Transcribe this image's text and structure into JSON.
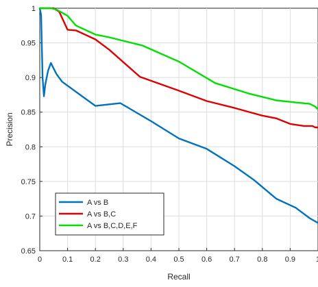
{
  "chart_data": {
    "type": "line",
    "title": "",
    "xlabel": "Recall",
    "ylabel": "Precision",
    "xlim": [
      0,
      1
    ],
    "ylim": [
      0.65,
      1
    ],
    "x_ticks": [
      0,
      0.1,
      0.2,
      0.3,
      0.4,
      0.5,
      0.6,
      0.7,
      0.8,
      0.9,
      1
    ],
    "x_tick_labels": [
      "0",
      "0.1",
      "0.2",
      "0.3",
      "0.4",
      "0.5",
      "0.6",
      "0.7",
      "0.8",
      "0.9",
      "1"
    ],
    "y_ticks": [
      0.65,
      0.7,
      0.75,
      0.8,
      0.85,
      0.9,
      0.95,
      1
    ],
    "y_tick_labels": [
      "0.65",
      "0.7",
      "0.75",
      "0.8",
      "0.85",
      "0.9",
      "0.95",
      "1"
    ],
    "grid": true,
    "legend_position": "bottom-left",
    "series": [
      {
        "name": "A vs B",
        "color": "#0072BD",
        "points": [
          [
            0,
            1.0
          ],
          [
            0.005,
            0.99
          ],
          [
            0.01,
            0.9
          ],
          [
            0.015,
            0.873
          ],
          [
            0.02,
            0.89
          ],
          [
            0.03,
            0.91
          ],
          [
            0.04,
            0.921
          ],
          [
            0.06,
            0.905
          ],
          [
            0.08,
            0.894
          ],
          [
            0.2,
            0.859
          ],
          [
            0.29,
            0.863
          ],
          [
            0.4,
            0.837
          ],
          [
            0.5,
            0.812
          ],
          [
            0.6,
            0.797
          ],
          [
            0.7,
            0.772
          ],
          [
            0.77,
            0.752
          ],
          [
            0.85,
            0.725
          ],
          [
            0.92,
            0.712
          ],
          [
            0.97,
            0.697
          ],
          [
            1.0,
            0.69
          ]
        ]
      },
      {
        "name": "A vs B,C",
        "color": "#E00000",
        "points": [
          [
            0,
            1.0
          ],
          [
            0.05,
            1.0
          ],
          [
            0.07,
            0.995
          ],
          [
            0.1,
            0.969
          ],
          [
            0.13,
            0.968
          ],
          [
            0.2,
            0.955
          ],
          [
            0.25,
            0.94
          ],
          [
            0.36,
            0.901
          ],
          [
            0.5,
            0.881
          ],
          [
            0.6,
            0.866
          ],
          [
            0.7,
            0.856
          ],
          [
            0.8,
            0.845
          ],
          [
            0.85,
            0.841
          ],
          [
            0.9,
            0.833
          ],
          [
            0.95,
            0.83
          ],
          [
            0.98,
            0.83
          ],
          [
            0.99,
            0.828
          ],
          [
            1.0,
            0.828
          ]
        ]
      },
      {
        "name": "A vs B,C,D,E,F",
        "color": "#00E000",
        "points": [
          [
            0,
            1.0
          ],
          [
            0.04,
            1.0
          ],
          [
            0.06,
            0.998
          ],
          [
            0.1,
            0.989
          ],
          [
            0.13,
            0.975
          ],
          [
            0.2,
            0.962
          ],
          [
            0.25,
            0.958
          ],
          [
            0.37,
            0.946
          ],
          [
            0.5,
            0.923
          ],
          [
            0.63,
            0.892
          ],
          [
            0.75,
            0.877
          ],
          [
            0.85,
            0.867
          ],
          [
            0.92,
            0.864
          ],
          [
            0.97,
            0.862
          ],
          [
            0.99,
            0.858
          ],
          [
            1.0,
            0.854
          ]
        ]
      }
    ]
  }
}
